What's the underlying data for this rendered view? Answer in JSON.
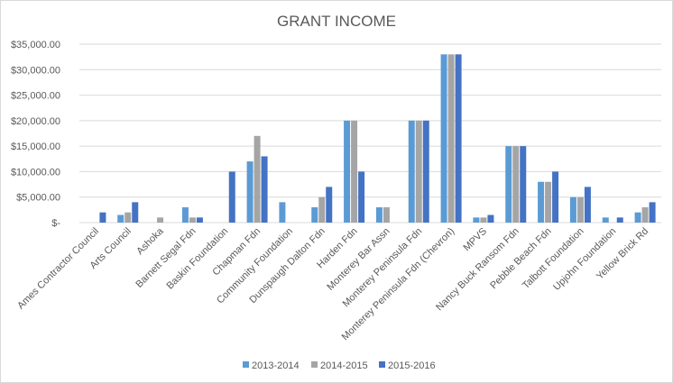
{
  "chart_data": {
    "type": "bar",
    "title": "GRANT INCOME",
    "xlabel": "",
    "ylabel": "",
    "ylim": [
      0,
      35000
    ],
    "y_ticks": [
      {
        "value": 0,
        "label": "$-"
      },
      {
        "value": 5000,
        "label": "$5,000.00"
      },
      {
        "value": 10000,
        "label": "$10,000.00"
      },
      {
        "value": 15000,
        "label": "$15,000.00"
      },
      {
        "value": 20000,
        "label": "$20,000.00"
      },
      {
        "value": 25000,
        "label": "$25,000.00"
      },
      {
        "value": 30000,
        "label": "$30,000.00"
      },
      {
        "value": 35000,
        "label": "$35,000.00"
      }
    ],
    "grid": true,
    "legend_position": "bottom",
    "categories": [
      "Ames Contractor Council",
      "Arts Council",
      "Ashoka",
      "Barnett Segal Fdn",
      "Baskin Foundation",
      "Chapman Fdn",
      "Community Foundation",
      "Dunspaugh Dalton Fdn",
      "Harden Fdn",
      "Monterey Bar Assn",
      "Monterey Peninsula Fdn",
      "Monterey Peninsula Fdn (Chevron)",
      "MPVS",
      "Nancy Buck Ransom Fdn",
      "Pebble Beach Fdn",
      "Talbott Foundation",
      "Upjohn Foundation",
      "Yellow Brick Rd"
    ],
    "series": [
      {
        "name": "2013-2014",
        "color": "#5b9bd5",
        "values": [
          0,
          1500,
          0,
          3000,
          0,
          12000,
          4000,
          3000,
          20000,
          3000,
          20000,
          33000,
          1000,
          15000,
          8000,
          5000,
          1000,
          2000
        ]
      },
      {
        "name": "2014-2015",
        "color": "#a5a5a5",
        "values": [
          0,
          2000,
          1000,
          1000,
          0,
          17000,
          0,
          5000,
          20000,
          3000,
          20000,
          33000,
          1000,
          15000,
          8000,
          5000,
          0,
          3000
        ]
      },
      {
        "name": "2015-2016",
        "color": "#4472c4",
        "values": [
          2000,
          4000,
          0,
          1000,
          10000,
          13000,
          0,
          7000,
          10000,
          0,
          20000,
          33000,
          1500,
          15000,
          10000,
          7000,
          1000,
          4000
        ]
      }
    ]
  }
}
